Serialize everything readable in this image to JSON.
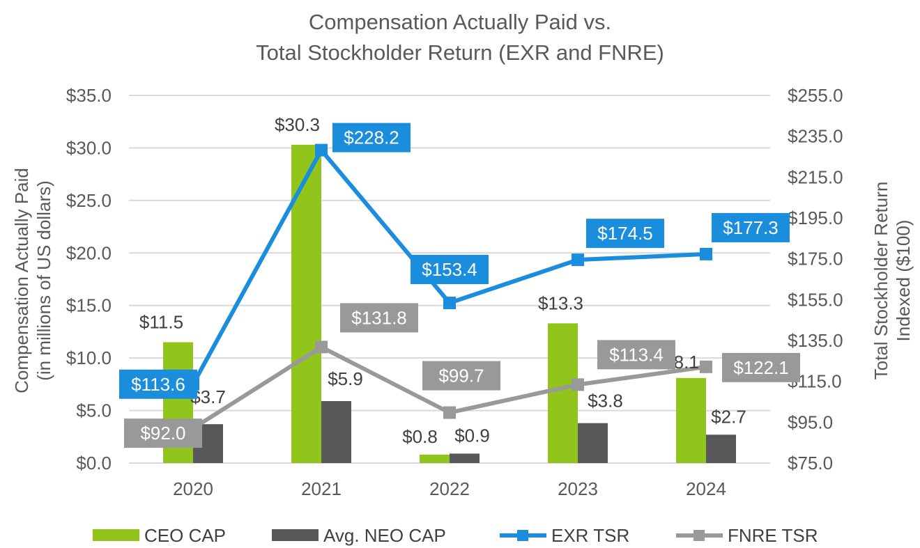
{
  "chart_data": {
    "type": "bar",
    "title": [
      "Compensation Actually Paid vs.",
      "Total Stockholder Return (EXR and FNRE)"
    ],
    "categories": [
      "2020",
      "2021",
      "2022",
      "2023",
      "2024"
    ],
    "ylabel_left": [
      "Compensation Actually Paid",
      "(in millions of US dollars)"
    ],
    "ylabel_right": [
      "Total Stockholder Return",
      "Indexed ($100)"
    ],
    "ylim_left": [
      0,
      35
    ],
    "ylim_right": [
      75,
      255
    ],
    "left_ticks": [
      "$0.0",
      "$5.0",
      "$10.0",
      "$15.0",
      "$20.0",
      "$25.0",
      "$30.0",
      "$35.0"
    ],
    "right_ticks": [
      "$75.0",
      "$95.0",
      "$115.0",
      "$135.0",
      "$155.0",
      "$175.0",
      "$195.0",
      "$215.0",
      "$235.0",
      "$255.0"
    ],
    "series": [
      {
        "name": "CEO CAP",
        "type": "bar",
        "axis": "left",
        "color": "#92c51b",
        "values": [
          11.5,
          30.3,
          0.8,
          13.3,
          8.1
        ],
        "labels": [
          "$11.5",
          "$30.3",
          "$0.8",
          "$13.3",
          "$8.1"
        ]
      },
      {
        "name": "Avg. NEO CAP",
        "type": "bar",
        "axis": "left",
        "color": "#58585a",
        "values": [
          3.7,
          5.9,
          0.9,
          3.8,
          2.7
        ],
        "labels": [
          "$3.7",
          "$5.9",
          "$0.9",
          "$3.8",
          "$2.7"
        ]
      },
      {
        "name": "EXR TSR",
        "type": "line",
        "axis": "right",
        "color": "#1a8ddd",
        "values": [
          113.6,
          228.2,
          153.4,
          174.5,
          177.3
        ],
        "labels": [
          "$113.6",
          "$228.2",
          "$153.4",
          "$174.5",
          "$177.3"
        ]
      },
      {
        "name": "FNRE TSR",
        "type": "line",
        "axis": "right",
        "color": "#999999",
        "values": [
          92.0,
          131.8,
          99.7,
          113.4,
          122.1
        ],
        "labels": [
          "$92.0",
          "$131.8",
          "$99.7",
          "$113.4",
          "$122.1"
        ]
      }
    ],
    "legend": "bottom",
    "grid": true
  }
}
